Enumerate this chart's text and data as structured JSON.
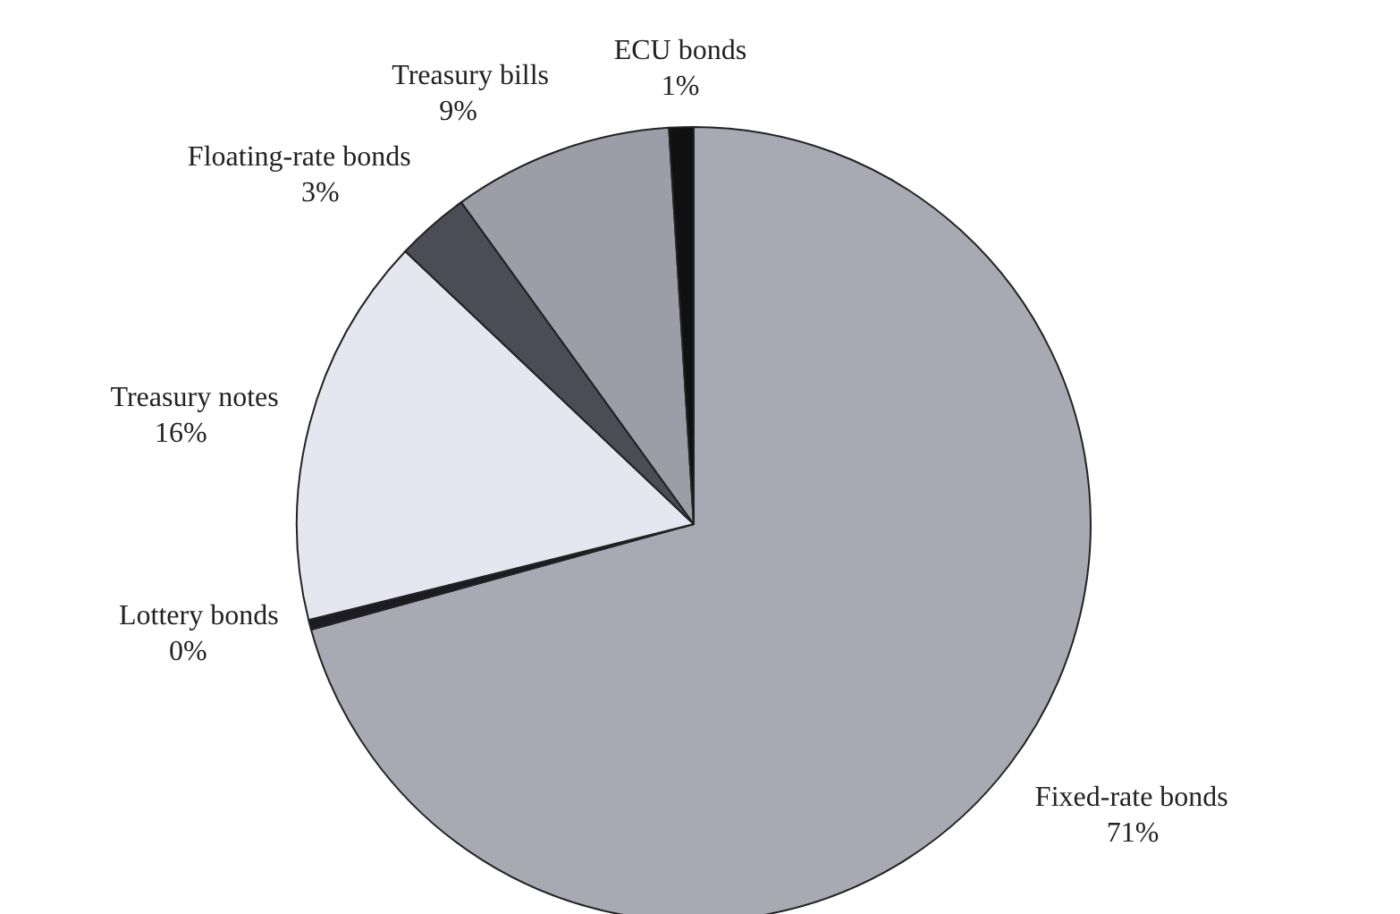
{
  "chart_data": {
    "type": "pie",
    "categories": [
      "Fixed-rate bonds",
      "Lottery bonds",
      "Treasury notes",
      "Floating-rate bonds",
      "Treasury bills",
      "ECU bonds"
    ],
    "values": [
      71,
      0.4,
      16,
      3,
      9,
      1
    ],
    "value_labels": [
      "71%",
      "0%",
      "16%",
      "3%",
      "9%",
      "1%"
    ],
    "colors": [
      "#a9a9b4",
      "#1c1c22",
      "#e6e6f0",
      "#4c4c57",
      "#9d9da8",
      "#101010"
    ],
    "legend": false
  }
}
